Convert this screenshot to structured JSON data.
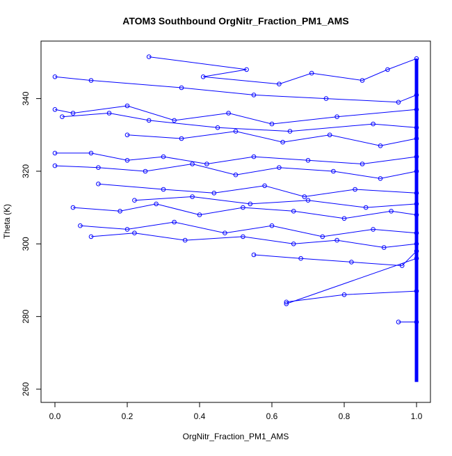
{
  "chart_data": {
    "type": "line",
    "title": "ATOM3 Southbound OrgNitr_Fraction_PM1_AMS",
    "xlabel": "OrgNitr_Fraction_PM1_AMS",
    "ylabel": "Theta (K)",
    "xlim": [
      0,
      1
    ],
    "ylim": [
      260,
      352
    ],
    "xticks": [
      0.0,
      0.2,
      0.4,
      0.6,
      0.8,
      1.0
    ],
    "xtick_labels": [
      "0.0",
      "0.2",
      "0.4",
      "0.6",
      "0.8",
      "1.0"
    ],
    "yticks": [
      260,
      280,
      300,
      320,
      340
    ],
    "ytick_labels": [
      "260",
      "280",
      "300",
      "320",
      "340"
    ],
    "grid": false,
    "marker": "open-circle",
    "series_color": "#0000ff",
    "series": [
      {
        "x": [
          0.26,
          0.53,
          0.41,
          0.62,
          0.71,
          0.85,
          0.92,
          1.0
        ],
        "y": [
          351.5,
          348,
          346,
          344,
          347,
          345,
          348,
          351
        ]
      },
      {
        "x": [
          0.0,
          0.1,
          0.35,
          0.55,
          0.75,
          0.95,
          1.0
        ],
        "y": [
          346,
          345,
          343,
          341,
          340,
          339,
          341
        ]
      },
      {
        "x": [
          0.0,
          0.05,
          0.2,
          0.33,
          0.48,
          0.6,
          0.78,
          1.0
        ],
        "y": [
          337,
          336,
          338,
          334,
          336,
          333,
          335,
          337
        ]
      },
      {
        "x": [
          0.02,
          0.15,
          0.26,
          0.45,
          0.65,
          0.88,
          1.0
        ],
        "y": [
          335,
          336,
          334,
          332,
          331,
          333,
          332
        ]
      },
      {
        "x": [
          0.0,
          0.1,
          0.2,
          0.3,
          0.42,
          0.55,
          0.7,
          0.85,
          1.0
        ],
        "y": [
          325,
          325,
          323,
          324,
          322,
          324,
          323,
          322,
          324
        ]
      },
      {
        "x": [
          0.0,
          0.12,
          0.25,
          0.38,
          0.5,
          0.62,
          0.77,
          0.9,
          1.0
        ],
        "y": [
          321.5,
          321,
          320,
          322,
          319,
          321,
          320,
          318,
          320
        ]
      },
      {
        "x": [
          0.12,
          0.3,
          0.44,
          0.58,
          0.69,
          0.83,
          1.0
        ],
        "y": [
          316.5,
          315,
          314,
          316,
          313,
          315,
          314
        ]
      },
      {
        "x": [
          0.05,
          0.18,
          0.28,
          0.4,
          0.52,
          0.66,
          0.8,
          0.93,
          1.0
        ],
        "y": [
          310,
          309,
          311,
          308,
          310,
          309,
          307,
          309,
          308
        ]
      },
      {
        "x": [
          0.07,
          0.2,
          0.33,
          0.47,
          0.6,
          0.74,
          0.88,
          1.0
        ],
        "y": [
          305,
          304,
          306,
          303,
          305,
          302,
          304,
          303
        ]
      },
      {
        "x": [
          0.1,
          0.22,
          0.36,
          0.52,
          0.66,
          0.78,
          0.91,
          1.0
        ],
        "y": [
          302,
          303,
          301,
          302,
          300,
          301,
          299,
          300
        ]
      },
      {
        "x": [
          0.55,
          0.68,
          0.82,
          0.96,
          1.0
        ],
        "y": [
          297,
          296,
          295,
          294,
          298
        ]
      },
      {
        "x": [
          0.64,
          0.8,
          1.0
        ],
        "y": [
          284,
          286,
          287
        ]
      },
      {
        "x": [
          0.64,
          1.0
        ],
        "y": [
          283.5,
          296
        ]
      },
      {
        "x": [
          0.95,
          1.0
        ],
        "y": [
          278.5,
          278.5
        ]
      },
      {
        "x": [
          0.2,
          0.35,
          0.5,
          0.63,
          0.76,
          0.9,
          1.0
        ],
        "y": [
          330,
          329,
          331,
          328,
          330,
          327,
          329
        ]
      },
      {
        "x": [
          0.22,
          0.38,
          0.54,
          0.7,
          0.86,
          1.0
        ],
        "y": [
          312,
          313,
          311,
          312,
          310,
          311
        ]
      }
    ],
    "vertical_column": {
      "x": 1.0,
      "y_from": 262,
      "y_to": 351
    }
  }
}
